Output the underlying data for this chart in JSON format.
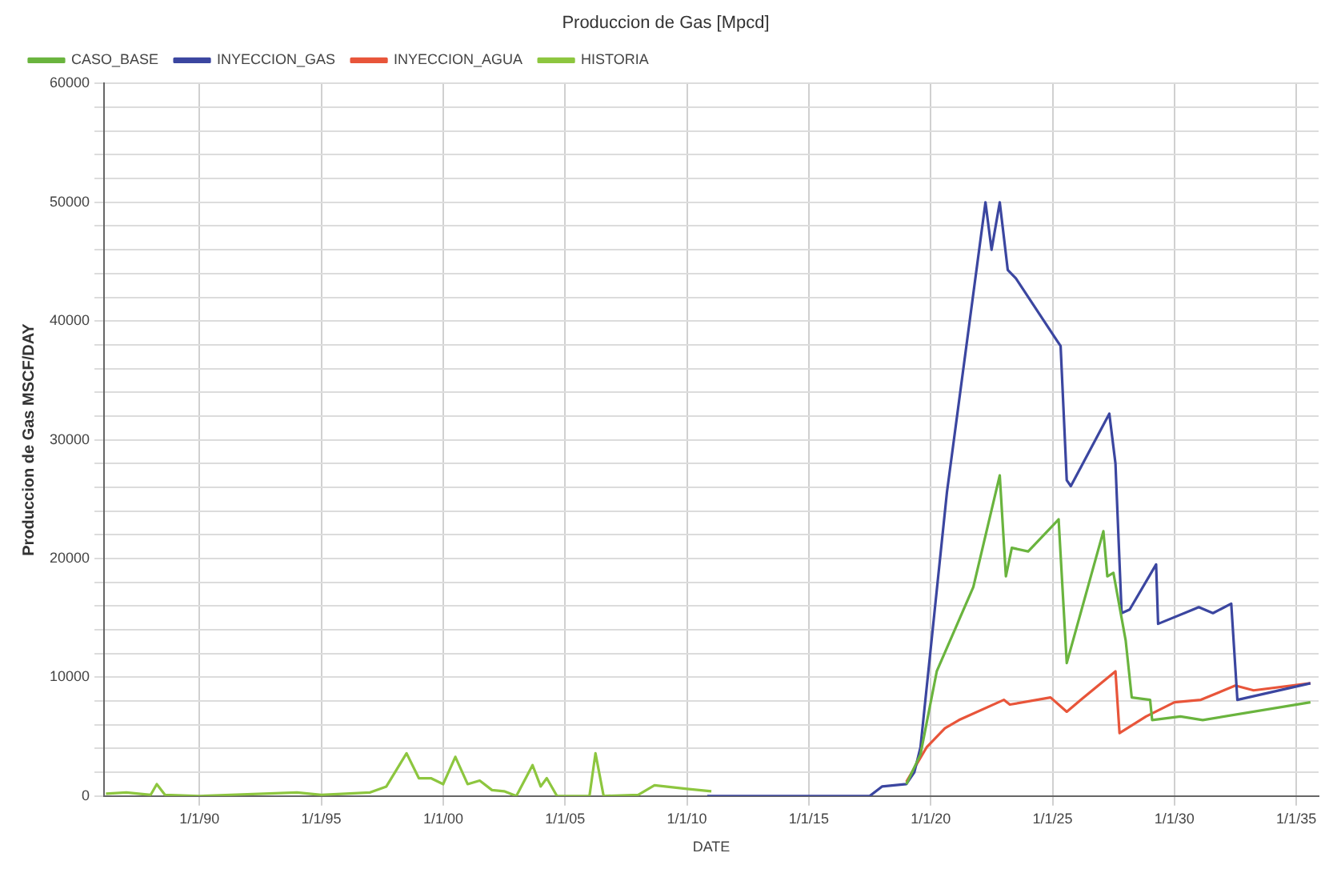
{
  "chart_data": {
    "type": "line",
    "title": "Produccion de Gas [Mpcd]",
    "xlabel": "DATE",
    "ylabel": "Produccion de Gas MSCF/DAY",
    "xlim": [
      "1986-02",
      "2035-12"
    ],
    "xticks": [
      {
        "value": "1990-01-01",
        "label": "1/1/90"
      },
      {
        "value": "1995-01-01",
        "label": "1/1/95"
      },
      {
        "value": "2000-01-01",
        "label": "1/1/00"
      },
      {
        "value": "2005-01-01",
        "label": "1/1/05"
      },
      {
        "value": "2010-01-01",
        "label": "1/1/10"
      },
      {
        "value": "2015-01-01",
        "label": "1/1/15"
      },
      {
        "value": "2020-01-01",
        "label": "1/1/20"
      },
      {
        "value": "2025-01-01",
        "label": "1/1/25"
      },
      {
        "value": "2030-01-01",
        "label": "1/1/30"
      },
      {
        "value": "2035-01-01",
        "label": "1/1/35"
      }
    ],
    "ylim": [
      0,
      60000
    ],
    "yticks": [
      0,
      {
        "value": 2000,
        "label": null
      },
      {
        "value": 4000,
        "label": null
      },
      {
        "value": 6000,
        "label": null
      },
      {
        "value": 8000,
        "label": null
      },
      10000,
      {
        "value": 12000,
        "label": null
      },
      {
        "value": 14000,
        "label": null
      },
      {
        "value": 16000,
        "label": null
      },
      {
        "value": 18000,
        "label": null
      },
      20000,
      {
        "value": 22000,
        "label": null
      },
      {
        "value": 24000,
        "label": null
      },
      {
        "value": 26000,
        "label": null
      },
      {
        "value": 28000,
        "label": null
      },
      30000,
      {
        "value": 32000,
        "label": null
      },
      {
        "value": 34000,
        "label": null
      },
      {
        "value": 36000,
        "label": null
      },
      {
        "value": 38000,
        "label": null
      },
      40000,
      {
        "value": 42000,
        "label": null
      },
      {
        "value": 44000,
        "label": null
      },
      {
        "value": 46000,
        "label": null
      },
      {
        "value": 48000,
        "label": null
      },
      50000,
      {
        "value": 52000,
        "label": null
      },
      {
        "value": 54000,
        "label": null
      },
      {
        "value": 56000,
        "label": null
      },
      {
        "value": 58000,
        "label": null
      },
      60000
    ],
    "grid": true,
    "legend": "top left",
    "marker": "none",
    "line_style": "solid",
    "series": [
      {
        "name": "CASO_BASE",
        "color": "#6ab43e",
        "x": [
          "2019-01",
          "2019-08",
          "2020-04",
          "2021-10",
          "2022-11",
          "2023-02",
          "2023-05",
          "2024-01",
          "2025-04",
          "2025-08",
          "2027-02",
          "2027-04",
          "2027-07",
          "2028-01",
          "2028-04",
          "2029-01",
          "2029-02",
          "2030-04",
          "2031-03",
          "2035-08"
        ],
        "values": [
          1000,
          3500,
          10500,
          17600,
          27000,
          18500,
          20900,
          20600,
          23300,
          11200,
          22300,
          18500,
          18800,
          13100,
          8300,
          8100,
          6400,
          6700,
          6400,
          7900
        ]
      },
      {
        "name": "INYECCION_GAS",
        "color": "#3b46a0",
        "x": [
          "2010-11",
          "2017-07",
          "2018-01",
          "2019-01",
          "2019-05",
          "2019-08",
          "2020-09",
          "2022-04",
          "2022-07",
          "2022-11",
          "2023-03",
          "2023-07",
          "2025-03",
          "2025-05",
          "2025-08",
          "2025-10",
          "2027-05",
          "2027-08",
          "2027-11",
          "2028-03",
          "2029-04",
          "2029-05",
          "2031-01",
          "2031-08",
          "2032-05",
          "2032-08",
          "2035-08"
        ],
        "values": [
          0,
          0,
          800,
          1000,
          2000,
          4100,
          25600,
          50000,
          46000,
          50000,
          44300,
          43600,
          38400,
          37900,
          26600,
          26100,
          32200,
          28000,
          15400,
          15700,
          19500,
          14500,
          15900,
          15400,
          16200,
          8100,
          9500
        ]
      },
      {
        "name": "INYECCION_AGUA",
        "color": "#e8553a",
        "x": [
          "2019-01",
          "2019-11",
          "2020-08",
          "2021-03",
          "2023-01",
          "2023-04",
          "2024-12",
          "2025-08",
          "2026-03",
          "2027-08",
          "2027-10",
          "2028-11",
          "2030-01",
          "2031-02",
          "2032-07",
          "2033-04",
          "2035-08"
        ],
        "values": [
          1200,
          4100,
          5700,
          6400,
          8100,
          7700,
          8300,
          7100,
          8100,
          10500,
          5300,
          6700,
          7900,
          8100,
          9300,
          8900,
          9500
        ]
      },
      {
        "name": "HISTORIA",
        "color": "#8dc63f",
        "x": [
          "1986-03",
          "1987-01",
          "1988-01",
          "1988-04",
          "1988-08",
          "1990-01",
          "1994-01",
          "1995-01",
          "1997-01",
          "1997-09",
          "1998-07",
          "1999-01",
          "1999-07",
          "2000-01",
          "2000-07",
          "2001-01",
          "2001-07",
          "2002-01",
          "2002-07",
          "2003-01",
          "2003-09",
          "2004-01",
          "2004-04",
          "2004-09",
          "2006-01",
          "2006-04",
          "2006-08",
          "2008-01",
          "2008-09",
          "2010-01",
          "2011-01"
        ],
        "values": [
          200,
          300,
          100,
          1000,
          100,
          0,
          300,
          100,
          300,
          800,
          3600,
          1500,
          1500,
          1000,
          3300,
          1000,
          1300,
          500,
          400,
          0,
          2600,
          800,
          1500,
          0,
          0,
          3600,
          0,
          100,
          900,
          600,
          400
        ]
      }
    ]
  }
}
